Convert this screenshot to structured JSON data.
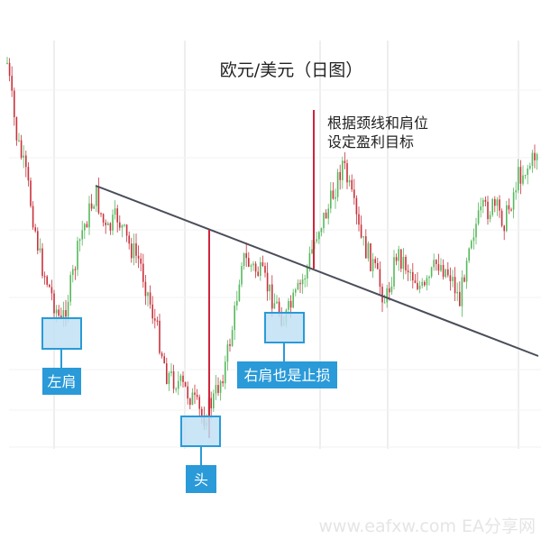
{
  "chart_data": {
    "type": "candlestick",
    "title": "欧元/美元（日图）",
    "colors": {
      "up": "#56b85c",
      "down": "#c8323c",
      "neckline": "#4a4e5a",
      "target_line": "#d0243c",
      "label_bg": "#2a9ad8",
      "label_text": "#ffffff",
      "zone_fill": "#bfe0f5",
      "zone_stroke": "#2a9ad8",
      "grid": "#e9e9e9",
      "watermark": "#e5e5e5"
    },
    "grid": true,
    "pattern_labels": {
      "left_shoulder": "左肩",
      "head": "头",
      "right_shoulder": "右肩也是止损"
    },
    "annotation": {
      "line1": "根据颈线和肩位",
      "line2": "设定盈利目标"
    },
    "watermark": "www.eafxw.com   EA分享网"
  }
}
